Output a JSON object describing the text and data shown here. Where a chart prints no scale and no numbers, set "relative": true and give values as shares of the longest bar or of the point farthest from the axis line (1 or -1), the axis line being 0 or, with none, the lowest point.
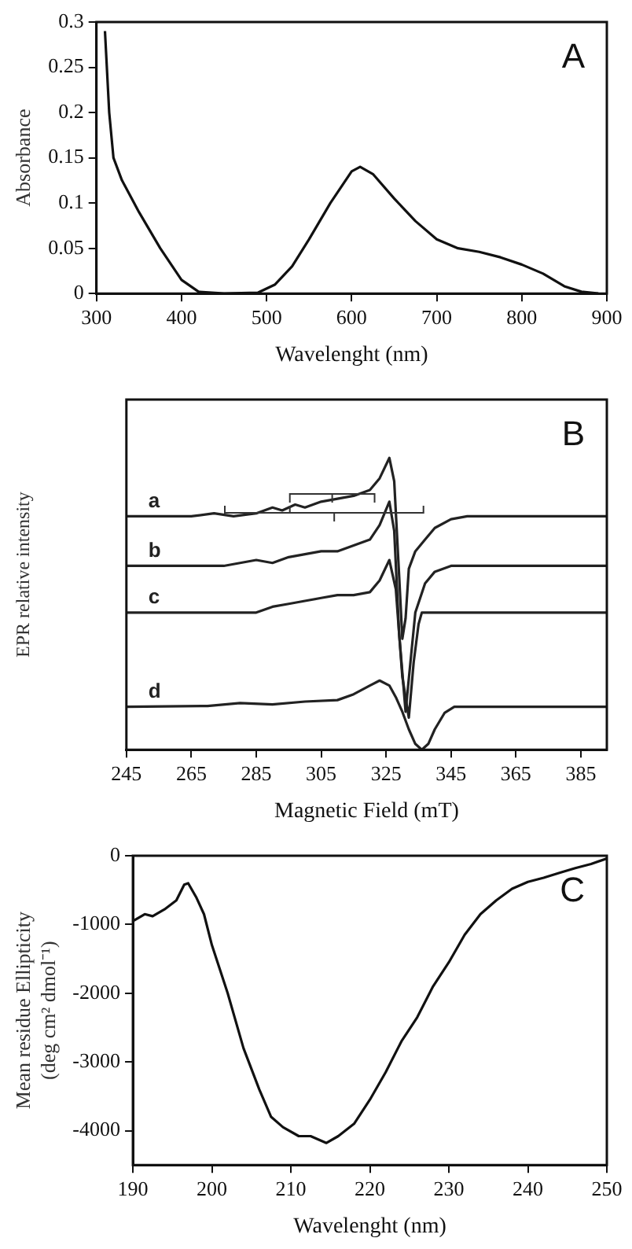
{
  "chart_data": [
    {
      "type": "line",
      "xlabel": "Wavelenght (nm)",
      "ylabel": "Absorbance",
      "annotations": [
        "A"
      ],
      "xlim": [
        300,
        900
      ],
      "ylim": [
        0,
        0.3
      ],
      "xticks": [
        300,
        400,
        500,
        600,
        700,
        800,
        900
      ],
      "yticks": [
        0,
        0.05,
        0.1,
        0.15,
        0.2,
        0.25,
        0.3
      ],
      "x": [
        310,
        315,
        320,
        330,
        350,
        375,
        400,
        420,
        450,
        490,
        510,
        530,
        550,
        575,
        600,
        610,
        625,
        650,
        675,
        700,
        725,
        750,
        775,
        800,
        825,
        850,
        870,
        890
      ],
      "series": [
        {
          "color": "#111111",
          "values": [
            0.29,
            0.2,
            0.15,
            0.125,
            0.09,
            0.05,
            0.015,
            0.002,
            0,
            0.001,
            0.01,
            0.03,
            0.06,
            0.1,
            0.135,
            0.14,
            0.132,
            0.105,
            0.08,
            0.06,
            0.05,
            0.046,
            0.04,
            0.032,
            0.022,
            0.008,
            0.002,
            0
          ]
        }
      ]
    },
    {
      "type": "line",
      "relative": true,
      "tick_labels": "x",
      "xlabel": "Magnetic Field (mT)",
      "ylabel": "EPR relative intensity",
      "annotations": [
        "B"
      ],
      "xlim": [
        245,
        393
      ],
      "xticks": [
        245,
        265,
        285,
        305,
        325,
        345,
        365,
        385
      ],
      "series": [
        {
          "name": "a",
          "color": "#222222",
          "x": [
            245,
            265,
            272,
            278,
            285,
            290,
            293,
            297,
            300,
            305,
            310,
            315,
            320,
            323,
            326,
            327.5,
            329,
            330,
            331,
            332,
            334,
            337,
            340,
            345,
            350,
            393
          ],
          "values": [
            0.8,
            0.8,
            0.81,
            0.8,
            0.81,
            0.83,
            0.82,
            0.84,
            0.83,
            0.85,
            0.86,
            0.87,
            0.89,
            0.93,
            1.0,
            0.92,
            0.6,
            0.38,
            0.45,
            0.62,
            0.68,
            0.72,
            0.76,
            0.79,
            0.8,
            0.8
          ]
        },
        {
          "name": "b",
          "color": "#222222",
          "x": [
            245,
            275,
            280,
            285,
            290,
            295,
            300,
            305,
            310,
            315,
            320,
            323,
            326,
            327.5,
            329,
            331,
            332.5,
            334,
            337,
            340,
            345,
            393
          ],
          "values": [
            0.63,
            0.63,
            0.64,
            0.65,
            0.64,
            0.66,
            0.67,
            0.68,
            0.68,
            0.7,
            0.72,
            0.77,
            0.85,
            0.75,
            0.4,
            0.13,
            0.3,
            0.47,
            0.57,
            0.61,
            0.63,
            0.63
          ]
        },
        {
          "name": "c",
          "color": "#222222",
          "x": [
            245,
            285,
            290,
            295,
            300,
            305,
            310,
            315,
            320,
            323,
            326,
            328,
            330,
            332,
            333.5,
            335,
            336,
            393
          ],
          "values": [
            0.47,
            0.47,
            0.49,
            0.5,
            0.51,
            0.52,
            0.53,
            0.53,
            0.54,
            0.58,
            0.65,
            0.55,
            0.25,
            0.11,
            0.3,
            0.43,
            0.47,
            0.47
          ]
        },
        {
          "name": "d",
          "color": "#222222",
          "x": [
            245,
            270,
            280,
            290,
            300,
            310,
            315,
            320,
            323,
            326,
            328,
            330,
            332,
            334,
            336,
            338,
            340,
            343,
            346,
            393
          ],
          "values": [
            0.147,
            0.15,
            0.16,
            0.155,
            0.165,
            0.17,
            0.19,
            0.22,
            0.237,
            0.22,
            0.18,
            0.13,
            0.07,
            0.02,
            0,
            0.02,
            0.07,
            0.126,
            0.147,
            0.147
          ]
        }
      ]
    },
    {
      "type": "line",
      "xlabel": "Wavelenght (nm)",
      "ylabel": "Mean residue Ellipticity (deg cm² dmol⁻¹)",
      "annotations": [
        "C"
      ],
      "xlim": [
        190,
        250
      ],
      "ylim": [
        -4500,
        0
      ],
      "xticks": [
        190,
        200,
        210,
        220,
        230,
        240,
        250
      ],
      "yticks": [
        0,
        -1000,
        -2000,
        -3000,
        -4000
      ],
      "x": [
        190,
        191.5,
        192.5,
        194,
        195.5,
        196.5,
        197,
        198,
        199,
        200,
        202,
        204,
        206,
        207.5,
        209,
        211,
        212.5,
        214.5,
        216,
        218,
        220,
        222,
        224,
        226,
        228,
        230,
        232,
        234,
        236,
        238,
        240,
        242,
        244,
        246,
        248,
        250
      ],
      "series": [
        {
          "color": "#111111",
          "values": [
            -950,
            -850,
            -880,
            -780,
            -650,
            -420,
            -400,
            -600,
            -850,
            -1300,
            -2000,
            -2800,
            -3400,
            -3800,
            -3950,
            -4080,
            -4080,
            -4180,
            -4080,
            -3900,
            -3550,
            -3150,
            -2700,
            -2350,
            -1900,
            -1550,
            -1150,
            -850,
            -650,
            -480,
            -380,
            -320,
            -250,
            -180,
            -120,
            -40
          ]
        }
      ]
    }
  ]
}
